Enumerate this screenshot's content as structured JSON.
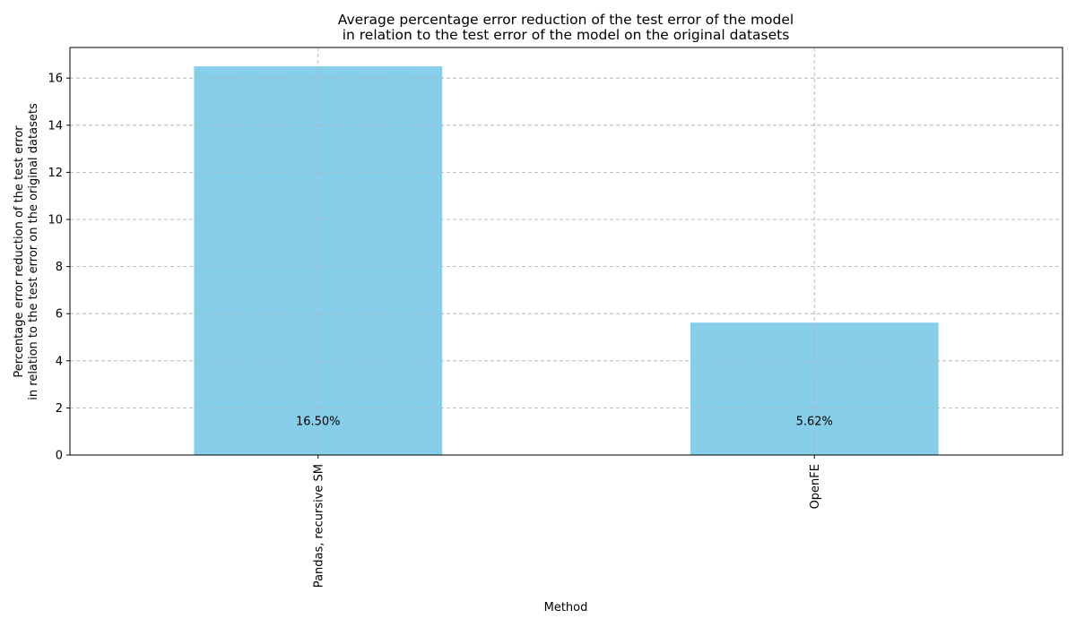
{
  "chart_data": {
    "type": "bar",
    "title_lines": [
      "Average percentage error reduction of the test error of the model",
      "in relation to the test error of the model on the original datasets"
    ],
    "xlabel": "Method",
    "ylabel_lines": [
      "Percentage error reduction of the test error",
      "in relation to the test error on the original datasets"
    ],
    "categories": [
      "Pandas, recursive SM",
      "OpenFE"
    ],
    "values": [
      16.5,
      5.62
    ],
    "value_labels": [
      "16.50%",
      "5.62%"
    ],
    "ylim": [
      0,
      17.3
    ],
    "yticks": [
      0,
      2,
      4,
      6,
      8,
      10,
      12,
      14,
      16
    ],
    "bar_color": "#87ceeb",
    "grid": true
  }
}
